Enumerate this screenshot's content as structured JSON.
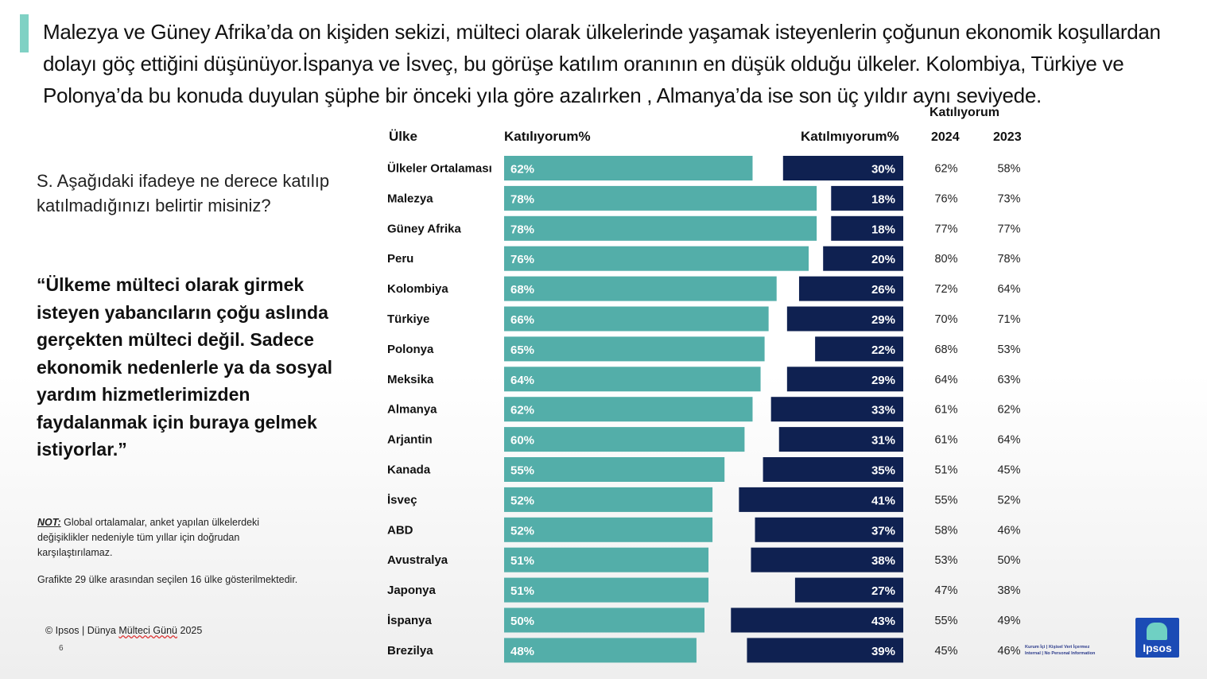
{
  "headline": "Malezya ve Güney Afrika’da on kişiden sekizi, mülteci olarak ülkelerinde yaşamak isteyenlerin çoğunun ekonomik koşullardan dolayı göç ettiğini düşünüyor.İspanya ve İsveç, bu görüşe katılım oranının en düşük olduğu ülkeler. Kolombiya, Türkiye ve Polonya’da bu konuda duyulan şüphe bir önceki yıla göre azalırken , Almanya’da ise son üç yıldır aynı seviyede.",
  "question": "S. Aşağıdaki ifadeye ne derece katılıp katılmadığınızı belirtir misiniz?",
  "quote": "“Ülkeme mülteci olarak girmek isteyen yabancıların çoğu aslında gerçekten mülteci değil. Sadece ekonomik nedenlerle ya da sosyal yardım hizmetlerimizden faydalanmak için buraya gelmek istiyorlar.”",
  "note": {
    "label": "NOT:",
    "text": " Global ortalamalar, anket yapılan ülkelerdeki değişiklikler nedeniyle tüm yıllar için doğrudan karşılaştırılamaz.",
    "text2": "Grafikte 29 ülke arasından seçilen 16 ülke gösterilmektedir."
  },
  "footer": {
    "copyright_prefix": "© Ipsos | Dünya ",
    "copyright_word": "Mülteci Günü",
    "copyright_suffix": " 2025",
    "page_number": "6",
    "classification_line1": "Kurum İçi | Kişisel Veri İçermez",
    "classification_line2": "Internal | No Personal Information",
    "logo_text": "Ipsos"
  },
  "headers": {
    "country": "Ülke",
    "agree": "Katılıyorum%",
    "disagree": "Katılmıyorum%",
    "agree_years_title": "Katılıyorum",
    "year1": "2024",
    "year2": "2023"
  },
  "colors": {
    "agree": "#53aea9",
    "disagree": "#0f2151",
    "accent": "#7fd1c4"
  },
  "chart_data": {
    "type": "bar",
    "orientation": "horizontal-diverging",
    "categories": [
      "Ülkeler Ortalaması",
      "Malezya",
      "Güney Afrika",
      "Peru",
      "Kolombiya",
      "Türkiye",
      "Polonya",
      "Meksika",
      "Almanya",
      "Arjantin",
      "Kanada",
      "İsveç",
      "ABD",
      "Avustralya",
      "Japonya",
      "İspanya",
      "Brezilya"
    ],
    "series": [
      {
        "name": "Katılıyorum%",
        "values": [
          62,
          78,
          78,
          76,
          68,
          66,
          65,
          64,
          62,
          60,
          55,
          52,
          52,
          51,
          51,
          50,
          48
        ]
      },
      {
        "name": "Katılmıyorum%",
        "values": [
          30,
          18,
          18,
          20,
          26,
          29,
          22,
          29,
          33,
          31,
          35,
          41,
          37,
          38,
          27,
          43,
          39
        ]
      }
    ],
    "table": {
      "title": "Katılıyorum",
      "columns": [
        "2024",
        "2023"
      ],
      "values_2024": [
        "62%",
        "76%",
        "77%",
        "80%",
        "72%",
        "70%",
        "68%",
        "64%",
        "61%",
        "61%",
        "51%",
        "55%",
        "58%",
        "53%",
        "47%",
        "55%",
        "45%"
      ],
      "values_2023": [
        "58%",
        "73%",
        "77%",
        "78%",
        "64%",
        "71%",
        "53%",
        "63%",
        "62%",
        "64%",
        "45%",
        "52%",
        "46%",
        "50%",
        "38%",
        "49%",
        "46%"
      ]
    },
    "xlim": [
      0,
      100
    ]
  }
}
